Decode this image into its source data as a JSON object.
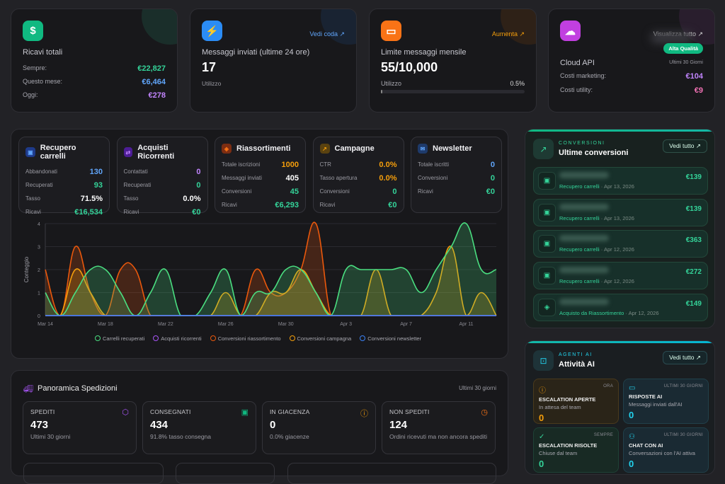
{
  "colors": {
    "green": "#34d399",
    "blue": "#60a5fa",
    "purple": "#c084fc",
    "orange": "#f59e0b",
    "red": "#f97316",
    "pink": "#f472b6",
    "text": "#e8e8ec"
  },
  "revenue": {
    "icon": "dollar-icon",
    "title": "Ricavi totali",
    "rows": [
      {
        "label": "Sempre:",
        "value": "€22,827"
      },
      {
        "label": "Questo mese:",
        "value": "€6,464"
      },
      {
        "label": "Oggi:",
        "value": "€278"
      }
    ]
  },
  "messages": {
    "icon": "lightning-icon",
    "link": "Vedi coda ↗",
    "title": "Messaggi inviati (ultime 24 ore)",
    "value": "17",
    "sub": "Utilizzo"
  },
  "limit": {
    "icon": "chat-icon",
    "link": "Aumenta ↗",
    "title": "Limite messaggi mensile",
    "value": "55/10,000",
    "usage_label": "Utilizzo",
    "usage_pct": "0.5%",
    "usage_fraction": 0.005
  },
  "cloud": {
    "icon": "cloud-icon",
    "link": "Visualizza tutto ↗",
    "badge": "Alta Qualità",
    "title": "Cloud API",
    "period": "Ultimi 30 Giorni",
    "rows": [
      {
        "label": "Costi marketing:",
        "value": "€104"
      },
      {
        "label": "Costi utility:",
        "value": "€9"
      }
    ]
  },
  "stats": [
    {
      "title": "Recupero carrelli",
      "icon": "cart-icon",
      "rows": [
        {
          "label": "Abbandonati",
          "value": "130"
        },
        {
          "label": "Recuperati",
          "value": "93"
        },
        {
          "label": "Tasso",
          "value": "71.5%"
        },
        {
          "label": "Ricavi",
          "value": "€16,534"
        }
      ]
    },
    {
      "title": "Acquisti Ricorrenti",
      "icon": "repeat-icon",
      "rows": [
        {
          "label": "Contattati",
          "value": "0"
        },
        {
          "label": "Recuperati",
          "value": "0"
        },
        {
          "label": "Tasso",
          "value": "0.0%"
        },
        {
          "label": "Ricavi",
          "value": "€0"
        }
      ]
    },
    {
      "title": "Riassortimenti",
      "icon": "box-icon",
      "rows": [
        {
          "label": "Totale iscrizioni",
          "value": "1000"
        },
        {
          "label": "Messaggi inviati",
          "value": "405"
        },
        {
          "label": "Conversioni",
          "value": "45"
        },
        {
          "label": "Ricavi",
          "value": "€6,293"
        }
      ]
    },
    {
      "title": "Campagne",
      "icon": "trend-icon",
      "rows": [
        {
          "label": "CTR",
          "value": "0.0%"
        },
        {
          "label": "Tasso apertura",
          "value": "0.0%"
        },
        {
          "label": "Conversioni",
          "value": "0"
        },
        {
          "label": "Ricavi",
          "value": "€0"
        }
      ]
    },
    {
      "title": "Newsletter",
      "icon": "mail-icon",
      "rows": [
        {
          "label": "Totale iscritti",
          "value": "0"
        },
        {
          "label": "Conversioni",
          "value": "0"
        },
        {
          "label": "Ricavi",
          "value": "€0"
        }
      ]
    }
  ],
  "chart_data": {
    "type": "area",
    "ylabel": "Conteggio",
    "ylim": [
      0,
      4
    ],
    "yticks": [
      "0",
      "1",
      "2",
      "3",
      "4"
    ],
    "grid": true,
    "legend": "bottom",
    "xticks": [
      "Mar 14",
      "Mar 18",
      "Mar 22",
      "Mar 26",
      "Mar 30",
      "Apr 3",
      "Apr 7",
      "Apr 11"
    ],
    "x_start": "Mar 14",
    "x_end": "Apr 13",
    "series": [
      {
        "name": "Carrelli recuperati",
        "color": "#4ade80",
        "values": [
          1,
          0,
          1,
          2,
          2,
          1,
          0,
          1,
          2,
          0,
          0,
          1,
          2,
          0,
          1,
          1,
          2,
          2,
          1,
          0,
          2,
          2,
          2,
          2,
          2,
          1,
          2,
          3,
          4,
          2,
          2
        ]
      },
      {
        "name": "Acquisti ricorrenti",
        "color": "#a855f7",
        "values": [
          0,
          0,
          0,
          0,
          0,
          0,
          0,
          0,
          0,
          0,
          0,
          0,
          0,
          0,
          0,
          0,
          0,
          0,
          0,
          0,
          0,
          0,
          0,
          0,
          0,
          0,
          0,
          0,
          0,
          0,
          0
        ]
      },
      {
        "name": "Conversioni riassortimento",
        "color": "#ea580c",
        "values": [
          2,
          0,
          3,
          1,
          0,
          2,
          2,
          0,
          0,
          0,
          0,
          0,
          0,
          0,
          2,
          1,
          1,
          2,
          4,
          0,
          0,
          0,
          0,
          0,
          0,
          0,
          0,
          0,
          0,
          0,
          0
        ]
      },
      {
        "name": "Conversioni campagna",
        "color": "#f59e0b",
        "values": [
          0,
          0,
          2,
          1,
          0,
          0,
          0,
          0,
          0,
          0,
          0,
          0,
          1,
          0,
          0,
          1,
          1,
          2,
          1,
          0,
          0,
          0,
          2,
          0,
          0,
          0,
          1,
          3,
          0,
          1,
          0
        ]
      },
      {
        "name": "Conversioni newsletter",
        "color": "#3b82f6",
        "values": [
          0,
          0,
          0,
          0,
          0,
          0,
          0,
          0,
          0,
          0,
          0,
          0,
          0,
          0,
          0,
          0,
          0,
          0,
          0,
          0,
          0,
          0,
          0,
          0,
          0,
          0,
          0,
          0,
          0,
          0,
          0
        ]
      }
    ]
  },
  "shipping": {
    "title": "Panoramica Spedizioni",
    "period": "Ultimi 30 giorni",
    "cards": [
      {
        "label": "SPEDITI",
        "value": "473",
        "desc": "Ultimi 30 giorni",
        "icon": "package-icon"
      },
      {
        "label": "CONSEGNATI",
        "value": "434",
        "desc": "91.8% tasso consegna",
        "icon": "bag-check-icon"
      },
      {
        "label": "IN GIACENZA",
        "value": "0",
        "desc": "0.0% giacenze",
        "icon": "alert-icon"
      },
      {
        "label": "NON SPEDITI",
        "value": "124",
        "desc": "Ordini ricevuti ma non ancora spediti",
        "icon": "clock-icon"
      }
    ]
  },
  "conversions": {
    "eyebrow": "CONVERSIONI",
    "title": "Ultime conversioni",
    "button": "Vedi tutto ↗",
    "items": [
      {
        "type": "Recupero carrelli",
        "date": "Apr 13, 2026",
        "amount": "€139",
        "icon": "bag-icon"
      },
      {
        "type": "Recupero carrelli",
        "date": "Apr 13, 2026",
        "amount": "€139",
        "icon": "bag-icon"
      },
      {
        "type": "Recupero carrelli",
        "date": "Apr 12, 2026",
        "amount": "€363",
        "icon": "bag-icon"
      },
      {
        "type": "Recupero carrelli",
        "date": "Apr 12, 2026",
        "amount": "€272",
        "icon": "bag-icon"
      },
      {
        "type": "Acquisto da Riassortimento",
        "date": "Apr 12, 2026",
        "amount": "€149",
        "icon": "box-icon"
      }
    ]
  },
  "ai": {
    "eyebrow": "AGENTI AI",
    "title": "Attività AI",
    "button": "Vedi tutto ↗",
    "tiles": [
      {
        "tag": "ORA",
        "title": "ESCALATION APERTE",
        "desc": "In attesa del team",
        "value": "0",
        "icon": "alert-icon"
      },
      {
        "tag": "ULTIMI 30 GIORNI",
        "title": "RISPOSTE AI",
        "desc": "Messaggi inviati dall'AI",
        "value": "0",
        "icon": "message-icon"
      },
      {
        "tag": "SEMPRE",
        "title": "ESCALATION RISOLTE",
        "desc": "Chiuse dal team",
        "value": "0",
        "icon": "check-circle-icon"
      },
      {
        "tag": "ULTIMI 30 GIORNI",
        "title": "CHAT CON AI",
        "desc": "Conversazioni con l'AI attiva",
        "value": "0",
        "icon": "users-icon"
      }
    ]
  }
}
